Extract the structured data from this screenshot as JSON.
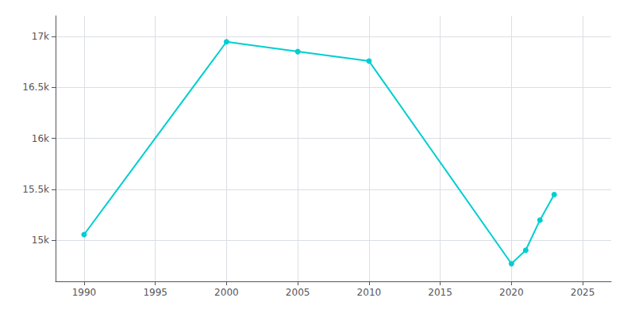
{
  "chart_data": {
    "type": "line",
    "x": [
      1990,
      2000,
      2005,
      2010,
      2020,
      2021,
      2022,
      2023
    ],
    "values": [
      15058,
      16946,
      16850,
      16757,
      14773,
      14905,
      15200,
      15450
    ],
    "color": "#00CED1",
    "marker": "circle",
    "xlim": [
      1988,
      2027
    ],
    "ylim": [
      14600,
      17200
    ],
    "xticks": [
      1990,
      1995,
      2000,
      2005,
      2010,
      2015,
      2020,
      2025
    ],
    "yticks": [
      {
        "value": 15000,
        "label": "15k"
      },
      {
        "value": 15500,
        "label": "15.5k"
      },
      {
        "value": 16000,
        "label": "16k"
      },
      {
        "value": 16500,
        "label": "16.5k"
      },
      {
        "value": 17000,
        "label": "17k"
      }
    ],
    "grid": true
  }
}
